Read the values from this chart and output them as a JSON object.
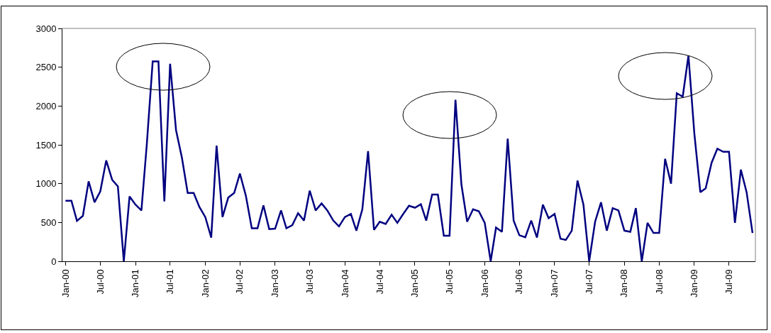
{
  "chart_data": {
    "type": "line",
    "x": [
      "2000-01",
      "2000-02",
      "2000-03",
      "2000-04",
      "2000-05",
      "2000-06",
      "2000-07",
      "2000-08",
      "2000-09",
      "2000-10",
      "2000-11",
      "2000-12",
      "2001-01",
      "2001-02",
      "2001-03",
      "2001-04",
      "2001-05",
      "2001-06",
      "2001-07",
      "2001-08",
      "2001-09",
      "2001-10",
      "2001-11",
      "2001-12",
      "2002-01",
      "2002-02",
      "2002-03",
      "2002-04",
      "2002-05",
      "2002-06",
      "2002-07",
      "2002-08",
      "2002-09",
      "2002-10",
      "2002-11",
      "2002-12",
      "2003-01",
      "2003-02",
      "2003-03",
      "2003-04",
      "2003-05",
      "2003-06",
      "2003-07",
      "2003-08",
      "2003-09",
      "2003-10",
      "2003-11",
      "2003-12",
      "2004-01",
      "2004-02",
      "2004-03",
      "2004-04",
      "2004-05",
      "2004-06",
      "2004-07",
      "2004-08",
      "2004-09",
      "2004-10",
      "2004-11",
      "2004-12",
      "2005-01",
      "2005-02",
      "2005-03",
      "2005-04",
      "2005-05",
      "2005-06",
      "2005-07",
      "2005-08",
      "2005-09",
      "2005-10",
      "2005-11",
      "2005-12",
      "2006-01",
      "2006-02",
      "2006-03",
      "2006-04",
      "2006-05",
      "2006-06",
      "2006-07",
      "2006-08",
      "2006-09",
      "2006-10",
      "2006-11",
      "2006-12",
      "2007-01",
      "2007-02",
      "2007-03",
      "2007-04",
      "2007-05",
      "2007-06",
      "2007-07",
      "2007-08",
      "2007-09",
      "2007-10",
      "2007-11",
      "2007-12",
      "2008-01",
      "2008-02",
      "2008-03",
      "2008-04",
      "2008-05",
      "2008-06",
      "2008-07",
      "2008-08",
      "2008-09",
      "2008-10",
      "2008-11",
      "2008-12",
      "2009-01",
      "2009-02",
      "2009-03",
      "2009-04",
      "2009-05",
      "2009-06",
      "2009-07",
      "2009-08",
      "2009-09",
      "2009-10",
      "2009-11"
    ],
    "series": [
      {
        "color": "#000080",
        "values": [
          780,
          780,
          520,
          585,
          1030,
          760,
          900,
          1300,
          1050,
          965,
          0,
          835,
          730,
          655,
          1500,
          2575,
          2575,
          770,
          2545,
          1690,
          1330,
          880,
          880,
          700,
          570,
          305,
          1490,
          570,
          820,
          880,
          1130,
          845,
          425,
          425,
          720,
          415,
          420,
          655,
          425,
          465,
          620,
          525,
          910,
          655,
          745,
          655,
          525,
          450,
          570,
          610,
          395,
          670,
          1420,
          405,
          510,
          480,
          600,
          495,
          610,
          715,
          690,
          735,
          525,
          860,
          860,
          330,
          330,
          2080,
          990,
          510,
          670,
          645,
          495,
          0,
          435,
          380,
          1580,
          525,
          335,
          310,
          525,
          305,
          730,
          555,
          610,
          290,
          275,
          395,
          1040,
          730,
          0,
          510,
          760,
          395,
          685,
          655,
          395,
          380,
          685,
          0,
          495,
          365,
          365,
          1320,
          1000,
          2165,
          2120,
          2650,
          1640,
          890,
          940,
          1270,
          1450,
          1410,
          1410,
          495,
          1180,
          890,
          365
        ]
      }
    ],
    "xlim": [
      "1999-12-16",
      "2009-11-16"
    ],
    "xticks": [
      {
        "value": "2000-01",
        "label": "Jan-00"
      },
      {
        "value": "2000-07",
        "label": "Jul-00"
      },
      {
        "value": "2001-01",
        "label": "Jan-01"
      },
      {
        "value": "2001-07",
        "label": "Jul-01"
      },
      {
        "value": "2002-01",
        "label": "Jan-02"
      },
      {
        "value": "2002-07",
        "label": "Jul-02"
      },
      {
        "value": "2003-01",
        "label": "Jan-03"
      },
      {
        "value": "2003-07",
        "label": "Jul-03"
      },
      {
        "value": "2004-01",
        "label": "Jan-04"
      },
      {
        "value": "2004-07",
        "label": "Jul-04"
      },
      {
        "value": "2005-01",
        "label": "Jan-05"
      },
      {
        "value": "2005-07",
        "label": "Jul-05"
      },
      {
        "value": "2006-01",
        "label": "Jan-06"
      },
      {
        "value": "2006-07",
        "label": "Jul-06"
      },
      {
        "value": "2007-01",
        "label": "Jan-07"
      },
      {
        "value": "2007-07",
        "label": "Jul-07"
      },
      {
        "value": "2008-01",
        "label": "Jan-08"
      },
      {
        "value": "2008-07",
        "label": "Jul-08"
      },
      {
        "value": "2009-01",
        "label": "Jan-09"
      },
      {
        "value": "2009-07",
        "label": "Jul-09"
      }
    ],
    "ylim": [
      0,
      3000
    ],
    "yticks": [
      0,
      500,
      1000,
      1500,
      2000,
      2500,
      3000
    ],
    "grid": false,
    "marker": "none",
    "line_style": "solid"
  }
}
